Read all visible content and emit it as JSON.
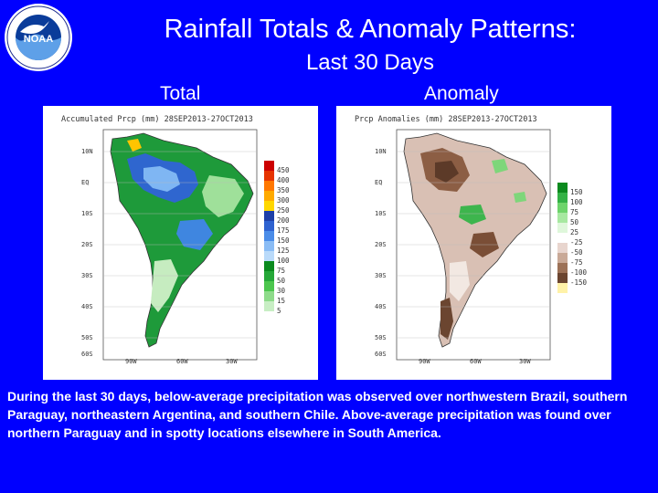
{
  "colors": {
    "background": "#0000FF",
    "text": "#FFFFFF"
  },
  "logo": {
    "icon": "noaa-logo",
    "text": "NOAA"
  },
  "header": {
    "title": "Rainfall Totals & Anomaly Patterns:",
    "subtitle": "Last 30 Days"
  },
  "panels": [
    {
      "label": "Total",
      "map_title": "Accumulated Prcp (mm) 28SEP2013-27OCT2013",
      "lat_ticks": [
        "10N",
        "EQ",
        "10S",
        "20S",
        "30S",
        "40S",
        "50S",
        "60S"
      ],
      "lon_ticks": [
        "90W",
        "60W",
        "30W"
      ],
      "legend": {
        "labels": [
          "450",
          "400",
          "350",
          "300",
          "250",
          "200",
          "175",
          "150",
          "125",
          "100",
          "75",
          "50",
          "30",
          "15",
          "5"
        ],
        "colors": [
          "#CC0000",
          "#E63300",
          "#FF7700",
          "#FFAA00",
          "#FFD700",
          "#1D3FA8",
          "#2E62D0",
          "#4A8CE8",
          "#8ABCF5",
          "#B9DAFA",
          "#0A8A1E",
          "#25A838",
          "#4CC64E",
          "#8EDB8A",
          "#C8EEC4"
        ]
      }
    },
    {
      "label": "Anomaly",
      "map_title": "Prcp Anomalies (mm) 28SEP2013-27OCT2013",
      "lat_ticks": [
        "10N",
        "EQ",
        "10S",
        "20S",
        "30S",
        "40S",
        "50S",
        "60S"
      ],
      "lon_ticks": [
        "90W",
        "60W",
        "30W"
      ],
      "legend": {
        "labels": [
          "150",
          "100",
          "75",
          "50",
          "25",
          "-25",
          "-50",
          "-75",
          "-100",
          "-150"
        ],
        "colors": [
          "#0B8A1E",
          "#33B245",
          "#6DD46B",
          "#A7E8A1",
          "#DFF7DB",
          "#FFFFFF",
          "#E8D5CE",
          "#C9A997",
          "#9C7157",
          "#6B4530",
          "#FFF2A8"
        ]
      }
    }
  ],
  "description": "During the last 30 days, below-average precipitation was observed over northwestern Brazil, southern Paraguay, northeastern Argentina, and southern Chile.  Above-average precipitation was found over northern Paraguay and in spotty locations elsewhere in South America."
}
